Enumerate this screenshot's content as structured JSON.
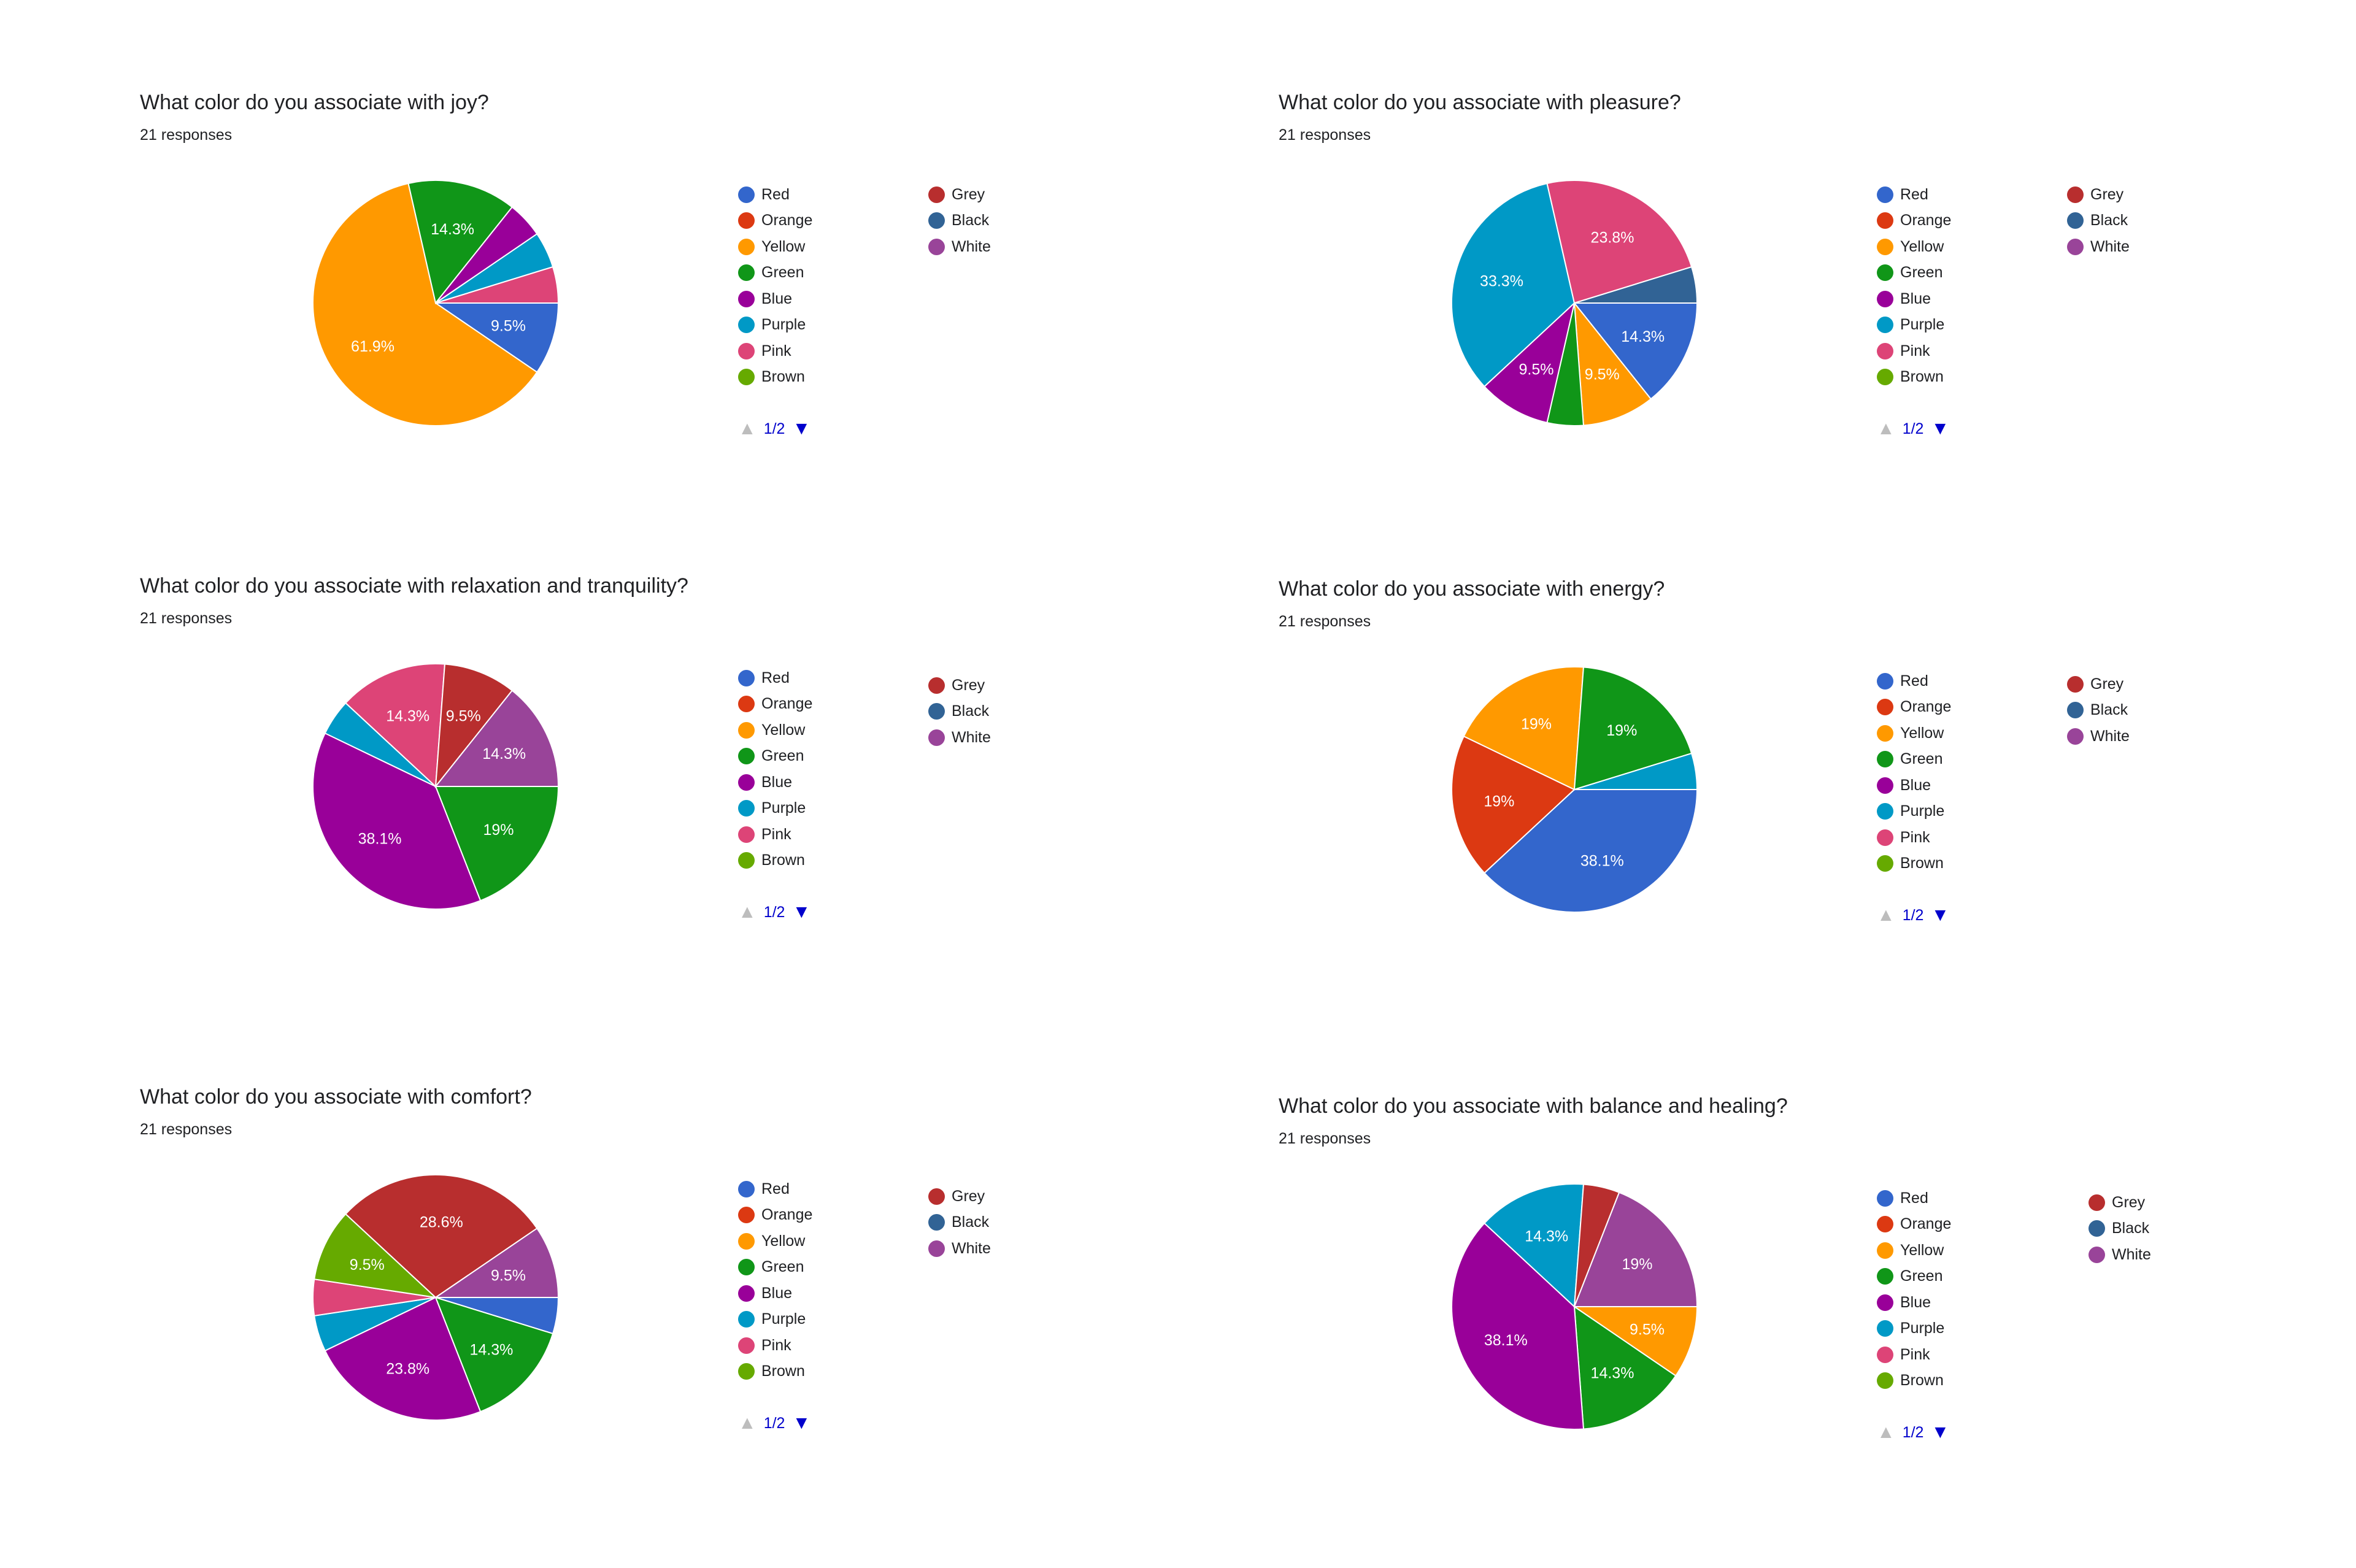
{
  "colors": {
    "Red": "#3366cc",
    "Orange": "#dc3912",
    "Yellow": "#ff9900",
    "Green": "#109618",
    "Blue": "#990099",
    "Purple": "#0099c6",
    "Pink": "#dd4477",
    "Brown": "#66aa00",
    "Grey": "#b82e2e",
    "Black": "#316395",
    "White": "#994499"
  },
  "legend_labels": {
    "col1": [
      "Red",
      "Orange",
      "Yellow",
      "Green",
      "Blue",
      "Purple",
      "Pink",
      "Brown"
    ],
    "col2": [
      "Grey",
      "Black",
      "White"
    ]
  },
  "pager": {
    "text": "1/2",
    "up_icon": "triangle-up-icon",
    "down_icon": "triangle-down-icon"
  },
  "questions": [
    {
      "title": "What color do you associate with joy?",
      "responses": "21 responses"
    },
    {
      "title": "What color do you associate with pleasure?",
      "responses": "21 responses"
    },
    {
      "title": "What color do you associate with relaxation and tranquility?",
      "responses": "21 responses"
    },
    {
      "title": "What color do you associate with energy?",
      "responses": "21 responses"
    },
    {
      "title": "What color do you associate with comfort?",
      "responses": "21 responses"
    },
    {
      "title": "What color do you associate with balance and healing?",
      "responses": "21 responses"
    }
  ],
  "chart_data": [
    {
      "type": "pie",
      "title": "What color do you associate with joy?",
      "total": 21,
      "slices": [
        {
          "label": "Red",
          "count": 2,
          "percent_label": "9.5%"
        },
        {
          "label": "Yellow",
          "count": 13,
          "percent_label": "61.9%"
        },
        {
          "label": "Green",
          "count": 3,
          "percent_label": "14.3%"
        },
        {
          "label": "Blue",
          "count": 1,
          "percent_label": ""
        },
        {
          "label": "Purple",
          "count": 1,
          "percent_label": ""
        },
        {
          "label": "Pink",
          "count": 1,
          "percent_label": ""
        }
      ]
    },
    {
      "type": "pie",
      "title": "What color do you associate with pleasure?",
      "total": 21,
      "slices": [
        {
          "label": "Red",
          "count": 3,
          "percent_label": "14.3%"
        },
        {
          "label": "Yellow",
          "count": 2,
          "percent_label": "9.5%"
        },
        {
          "label": "Green",
          "count": 1,
          "percent_label": ""
        },
        {
          "label": "Blue",
          "count": 2,
          "percent_label": "9.5%"
        },
        {
          "label": "Purple",
          "count": 7,
          "percent_label": "33.3%"
        },
        {
          "label": "Pink",
          "count": 5,
          "percent_label": "23.8%"
        },
        {
          "label": "Black",
          "count": 1,
          "percent_label": ""
        }
      ]
    },
    {
      "type": "pie",
      "title": "What color do you associate with relaxation and tranquility?",
      "total": 21,
      "slices": [
        {
          "label": "Green",
          "count": 4,
          "percent_label": "19%"
        },
        {
          "label": "Blue",
          "count": 8,
          "percent_label": "38.1%"
        },
        {
          "label": "Purple",
          "count": 1,
          "percent_label": ""
        },
        {
          "label": "Pink",
          "count": 3,
          "percent_label": "14.3%"
        },
        {
          "label": "Grey",
          "count": 2,
          "percent_label": "9.5%"
        },
        {
          "label": "White",
          "count": 3,
          "percent_label": "14.3%"
        }
      ]
    },
    {
      "type": "pie",
      "title": "What color do you associate with energy?",
      "total": 21,
      "slices": [
        {
          "label": "Red",
          "count": 8,
          "percent_label": "38.1%"
        },
        {
          "label": "Orange",
          "count": 4,
          "percent_label": "19%"
        },
        {
          "label": "Yellow",
          "count": 4,
          "percent_label": "19%"
        },
        {
          "label": "Green",
          "count": 4,
          "percent_label": "19%"
        },
        {
          "label": "Purple",
          "count": 1,
          "percent_label": ""
        }
      ]
    },
    {
      "type": "pie",
      "title": "What color do you associate with comfort?",
      "total": 21,
      "slices": [
        {
          "label": "Red",
          "count": 1,
          "percent_label": ""
        },
        {
          "label": "Green",
          "count": 3,
          "percent_label": "14.3%"
        },
        {
          "label": "Blue",
          "count": 5,
          "percent_label": "23.8%"
        },
        {
          "label": "Purple",
          "count": 1,
          "percent_label": ""
        },
        {
          "label": "Pink",
          "count": 1,
          "percent_label": ""
        },
        {
          "label": "Brown",
          "count": 2,
          "percent_label": "9.5%"
        },
        {
          "label": "Grey",
          "count": 6,
          "percent_label": "28.6%"
        },
        {
          "label": "White",
          "count": 2,
          "percent_label": "9.5%"
        }
      ]
    },
    {
      "type": "pie",
      "title": "What color do you associate with balance and healing?",
      "total": 21,
      "slices": [
        {
          "label": "Yellow",
          "count": 2,
          "percent_label": "9.5%"
        },
        {
          "label": "Green",
          "count": 3,
          "percent_label": "14.3%"
        },
        {
          "label": "Blue",
          "count": 8,
          "percent_label": "38.1%"
        },
        {
          "label": "Purple",
          "count": 3,
          "percent_label": "14.3%"
        },
        {
          "label": "Grey",
          "count": 1,
          "percent_label": ""
        },
        {
          "label": "White",
          "count": 4,
          "percent_label": "19%"
        }
      ]
    }
  ]
}
